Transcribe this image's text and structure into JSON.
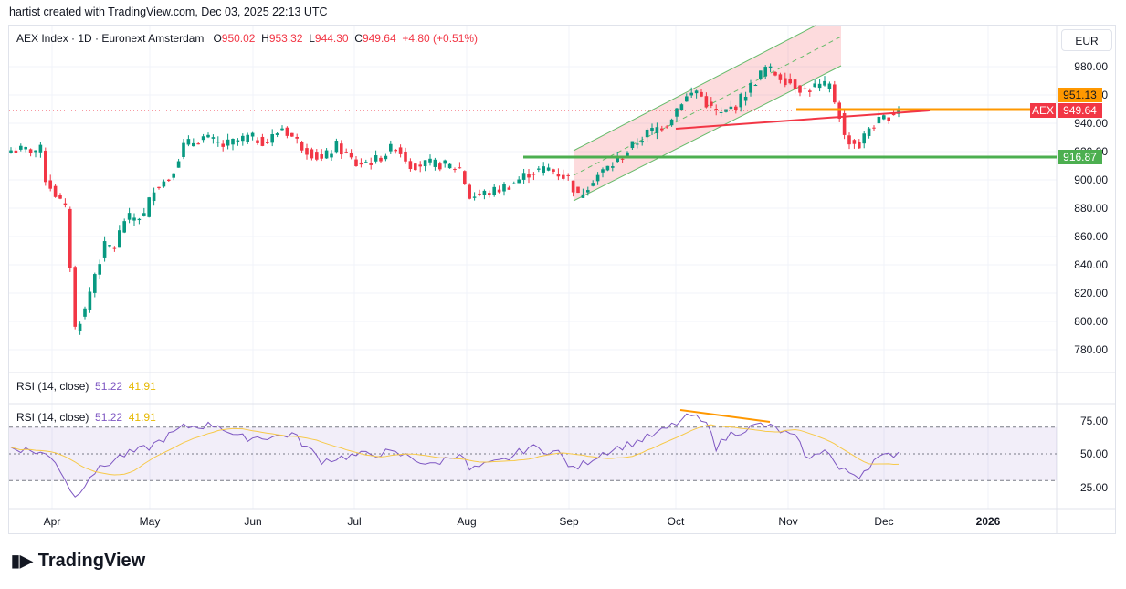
{
  "credit": "hartist created with TradingView.com, Dec 03, 2025 22:13 UTC",
  "legend": {
    "symbol": "AEX Index · 1D · Euronext Amsterdam",
    "o_label": "O",
    "o": "950.02",
    "h_label": "H",
    "h": "953.32",
    "l_label": "L",
    "l": "944.30",
    "c_label": "C",
    "c": "949.64",
    "change": "+4.80 (+0.51%)"
  },
  "rsi_legend": {
    "name": "RSI (14, close)",
    "rsi": "51.22",
    "ma": "41.91"
  },
  "currency": "EUR",
  "price_axis": [
    "980.00",
    "960.00",
    "940.00",
    "920.00",
    "900.00",
    "880.00",
    "860.00",
    "840.00",
    "820.00",
    "800.00",
    "780.00"
  ],
  "price_tags": {
    "orange": "951.13",
    "last": "949.64",
    "symbol": "AEX",
    "green": "916.87"
  },
  "rsi_axis": [
    "75.00",
    "50.00",
    "25.00"
  ],
  "time_axis": [
    "Apr",
    "May",
    "Jun",
    "Jul",
    "Aug",
    "Sep",
    "Oct",
    "Nov",
    "Dec",
    "2026"
  ],
  "colors": {
    "up": "#089981",
    "down": "#f23645",
    "orange": "#ff9800",
    "green": "#4caf50",
    "rsi": "#7e57c2",
    "ma": "#f7c948"
  },
  "chart_data": {
    "type": "candlestick",
    "ylim": [
      770,
      995
    ],
    "price_keypoints": [
      [
        0,
        921
      ],
      [
        6,
        921
      ],
      [
        7,
        901
      ],
      [
        11,
        879
      ],
      [
        12,
        840
      ],
      [
        13,
        795
      ],
      [
        15,
        808
      ],
      [
        17,
        834
      ],
      [
        19,
        853
      ],
      [
        21,
        853
      ],
      [
        23,
        872
      ],
      [
        27,
        875
      ],
      [
        29,
        895
      ],
      [
        32,
        901
      ],
      [
        35,
        924
      ],
      [
        39,
        930
      ],
      [
        43,
        924
      ],
      [
        48,
        930
      ],
      [
        52,
        927
      ],
      [
        55,
        937
      ],
      [
        59,
        924
      ],
      [
        63,
        914
      ],
      [
        66,
        924
      ],
      [
        70,
        911
      ],
      [
        74,
        914
      ],
      [
        78,
        924
      ],
      [
        81,
        911
      ],
      [
        87,
        911
      ],
      [
        91,
        908
      ],
      [
        93,
        888
      ],
      [
        98,
        892
      ],
      [
        102,
        898
      ],
      [
        105,
        905
      ],
      [
        109,
        908
      ],
      [
        113,
        901
      ],
      [
        115,
        888
      ],
      [
        118,
        901
      ],
      [
        122,
        911
      ],
      [
        126,
        924
      ],
      [
        129,
        933
      ],
      [
        133,
        940
      ],
      [
        136,
        956
      ],
      [
        139,
        963
      ],
      [
        142,
        950
      ],
      [
        144,
        946
      ],
      [
        147,
        953
      ],
      [
        150,
        966
      ],
      [
        153,
        979
      ],
      [
        155,
        975
      ],
      [
        158,
        969
      ],
      [
        161,
        963
      ],
      [
        163,
        966
      ],
      [
        166,
        966
      ],
      [
        168,
        946
      ],
      [
        169,
        930
      ],
      [
        172,
        924
      ],
      [
        174,
        937
      ],
      [
        177,
        943
      ],
      [
        180,
        949.64
      ]
    ],
    "rsi_keypoints": [
      [
        0,
        55
      ],
      [
        6,
        51
      ],
      [
        9,
        45
      ],
      [
        13,
        17
      ],
      [
        16,
        34
      ],
      [
        22,
        48
      ],
      [
        28,
        55
      ],
      [
        35,
        70
      ],
      [
        42,
        72
      ],
      [
        46,
        62
      ],
      [
        54,
        63
      ],
      [
        57,
        65
      ],
      [
        63,
        45
      ],
      [
        68,
        48
      ],
      [
        76,
        51
      ],
      [
        81,
        48
      ],
      [
        85,
        41
      ],
      [
        91,
        51
      ],
      [
        93,
        38
      ],
      [
        100,
        45
      ],
      [
        105,
        55
      ],
      [
        111,
        51
      ],
      [
        114,
        38
      ],
      [
        120,
        51
      ],
      [
        126,
        58
      ],
      [
        131,
        65
      ],
      [
        136,
        75
      ],
      [
        138,
        79
      ],
      [
        142,
        69
      ],
      [
        143,
        55
      ],
      [
        146,
        65
      ],
      [
        152,
        72
      ],
      [
        155,
        69
      ],
      [
        159,
        62
      ],
      [
        162,
        45
      ],
      [
        165,
        55
      ],
      [
        168,
        38
      ],
      [
        172,
        34
      ],
      [
        175,
        45
      ],
      [
        180,
        51.22
      ]
    ]
  }
}
